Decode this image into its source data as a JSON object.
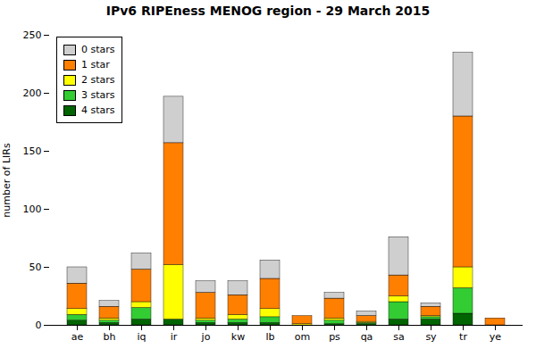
{
  "chart_data": {
    "type": "bar",
    "stacked": true,
    "title": "IPv6 RIPEness MENOG region - 29 March 2015",
    "ylabel": "number of LIRs",
    "categories": [
      "ae",
      "bh",
      "iq",
      "ir",
      "jo",
      "kw",
      "lb",
      "om",
      "ps",
      "qa",
      "sa",
      "sy",
      "tr",
      "ye"
    ],
    "series": [
      {
        "name": "4 stars",
        "color": "#006400",
        "values": [
          4,
          2,
          5,
          5,
          2,
          2,
          2,
          0,
          1,
          1,
          5,
          5,
          10,
          0
        ]
      },
      {
        "name": "3 stars",
        "color": "#33cc33",
        "values": [
          5,
          2,
          10,
          0,
          2,
          3,
          5,
          0,
          3,
          1,
          15,
          2,
          22,
          0
        ]
      },
      {
        "name": "2 stars",
        "color": "#ffff00",
        "values": [
          5,
          2,
          5,
          47,
          2,
          4,
          7,
          1,
          2,
          1,
          5,
          1,
          18,
          0
        ]
      },
      {
        "name": "1 star",
        "color": "#ff7f00",
        "values": [
          22,
          10,
          28,
          105,
          22,
          17,
          26,
          7,
          17,
          5,
          18,
          8,
          130,
          6
        ]
      },
      {
        "name": "0 stars",
        "color": "#bebebebe",
        "values": [
          14,
          5,
          14,
          40,
          10,
          12,
          16,
          0,
          5,
          4,
          33,
          3,
          55,
          0
        ]
      }
    ],
    "ylim": [
      0,
      250
    ],
    "yticks": [
      0,
      50,
      100,
      150,
      200,
      250
    ],
    "legend": "upper left",
    "grid": false
  }
}
